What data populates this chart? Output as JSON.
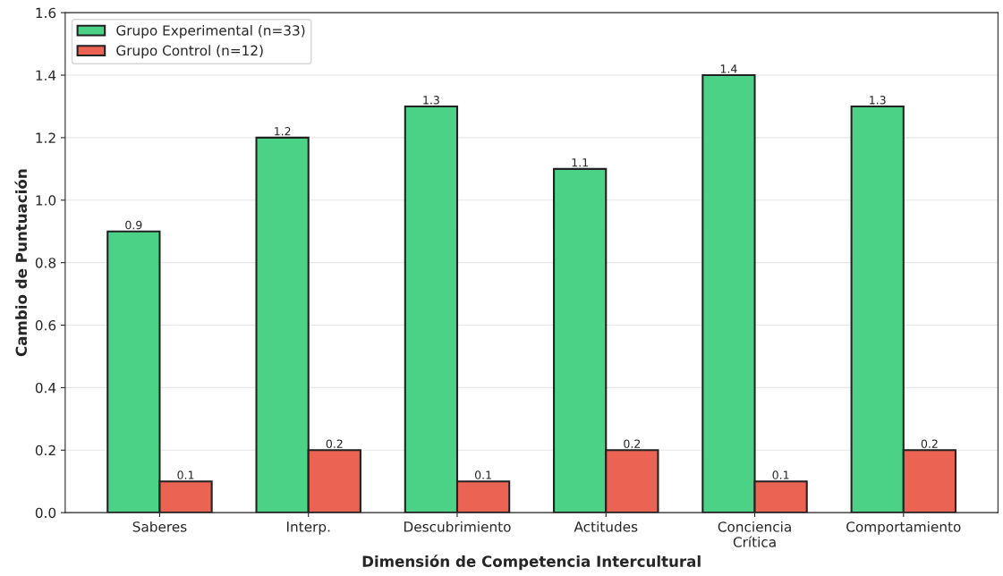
{
  "chart_data": {
    "type": "bar",
    "xlabel": "Dimensión de Competencia Intercultural",
    "ylabel": "Cambio de Puntuación",
    "categories": [
      "Saberes",
      "Interp.",
      "Descubrimiento",
      "Actitudes",
      "Conciencia\nCrítica",
      "Comportamiento"
    ],
    "series": [
      {
        "name": "Grupo Experimental (n=33)",
        "color": "#4cd287",
        "values": [
          0.9,
          1.2,
          1.3,
          1.1,
          1.4,
          1.3
        ]
      },
      {
        "name": "Grupo Control (n=12)",
        "color": "#eb6353",
        "values": [
          0.1,
          0.2,
          0.1,
          0.2,
          0.1,
          0.2
        ]
      }
    ],
    "ylim": [
      0,
      1.6
    ],
    "yticks": [
      {
        "value": 0,
        "label": "0.0"
      },
      {
        "value": 0.2,
        "label": "0.2"
      },
      {
        "value": 0.4,
        "label": "0.4"
      },
      {
        "value": 0.6,
        "label": "0.6"
      },
      {
        "value": 0.8,
        "label": "0.8"
      },
      {
        "value": 1.0,
        "label": "1.0"
      },
      {
        "value": 1.2,
        "label": "1.2"
      },
      {
        "value": 1.4,
        "label": "1.4"
      },
      {
        "value": 1.6,
        "label": "1.6"
      }
    ],
    "grid": "y",
    "legend": "top left",
    "data_labels": true
  }
}
